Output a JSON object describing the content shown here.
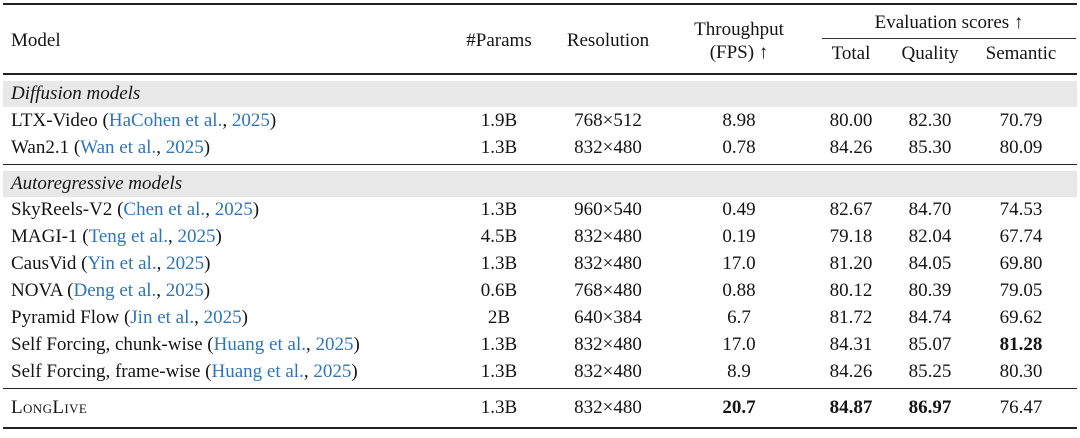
{
  "table": {
    "header": {
      "model": "Model",
      "params": "#Params",
      "resolution": "Resolution",
      "throughput_line1": "Throughput",
      "throughput_line2": "(FPS) ↑",
      "eval_group": "Evaluation scores ↑",
      "total": "Total",
      "quality": "Quality",
      "semantic": "Semantic"
    },
    "sections": {
      "diffusion": "Diffusion models",
      "autoregressive": "Autoregressive models"
    },
    "rows": [
      {
        "model_pre": "LTX-Video (",
        "cite_author": "HaCohen et al.",
        "cite_comma": ", ",
        "cite_year": "2025",
        "model_post": ")",
        "params": "1.9B",
        "resolution": "768×512",
        "throughput": "8.98",
        "total": "80.00",
        "quality": "82.30",
        "semantic": "70.79"
      },
      {
        "model_pre": "Wan2.1 (",
        "cite_author": "Wan et al.",
        "cite_comma": ", ",
        "cite_year": "2025",
        "model_post": ")",
        "params": "1.3B",
        "resolution": "832×480",
        "throughput": "0.78",
        "total": "84.26",
        "quality": "85.30",
        "semantic": "80.09"
      },
      {
        "model_pre": "SkyReels-V2 (",
        "cite_author": "Chen et al.",
        "cite_comma": ", ",
        "cite_year": "2025",
        "model_post": ")",
        "params": "1.3B",
        "resolution": "960×540",
        "throughput": "0.49",
        "total": "82.67",
        "quality": "84.70",
        "semantic": "74.53"
      },
      {
        "model_pre": "MAGI-1 (",
        "cite_author": "Teng et al.",
        "cite_comma": ", ",
        "cite_year": "2025",
        "model_post": ")",
        "params": "4.5B",
        "resolution": "832×480",
        "throughput": "0.19",
        "total": "79.18",
        "quality": "82.04",
        "semantic": "67.74"
      },
      {
        "model_pre": "CausVid (",
        "cite_author": "Yin et al.",
        "cite_comma": ", ",
        "cite_year": "2025",
        "model_post": ")",
        "params": "1.3B",
        "resolution": "832×480",
        "throughput": "17.0",
        "total": "81.20",
        "quality": "84.05",
        "semantic": "69.80"
      },
      {
        "model_pre": "NOVA (",
        "cite_author": "Deng et al.",
        "cite_comma": ", ",
        "cite_year": "2025",
        "model_post": ")",
        "params": "0.6B",
        "resolution": "768×480",
        "throughput": "0.88",
        "total": "80.12",
        "quality": "80.39",
        "semantic": "79.05"
      },
      {
        "model_pre": "Pyramid Flow (",
        "cite_author": "Jin et al.",
        "cite_comma": ", ",
        "cite_year": "2025",
        "model_post": ")",
        "params": "2B",
        "resolution": "640×384",
        "throughput": "6.7",
        "total": "81.72",
        "quality": "84.74",
        "semantic": "69.62"
      },
      {
        "model_pre": "Self Forcing, chunk-wise (",
        "cite_author": "Huang et al.",
        "cite_comma": ", ",
        "cite_year": "2025",
        "model_post": ")",
        "params": "1.3B",
        "resolution": "832×480",
        "throughput": "17.0",
        "total": "84.31",
        "quality": "85.07",
        "semantic": "81.28"
      },
      {
        "model_pre": "Self Forcing, frame-wise (",
        "cite_author": "Huang et al.",
        "cite_comma": ", ",
        "cite_year": "2025",
        "model_post": ")",
        "params": "1.3B",
        "resolution": "832×480",
        "throughput": "8.9",
        "total": "84.26",
        "quality": "85.25",
        "semantic": "80.30"
      },
      {
        "model_name": "LongLive",
        "params": "1.3B",
        "resolution": "832×480",
        "throughput": "20.7",
        "total": "84.87",
        "quality": "86.97",
        "semantic": "76.47"
      }
    ]
  },
  "colors": {
    "citation_blue": "#2e74b9",
    "section_row_bg": "#e8e8e8",
    "rule": "#222222",
    "text": "#141414"
  }
}
